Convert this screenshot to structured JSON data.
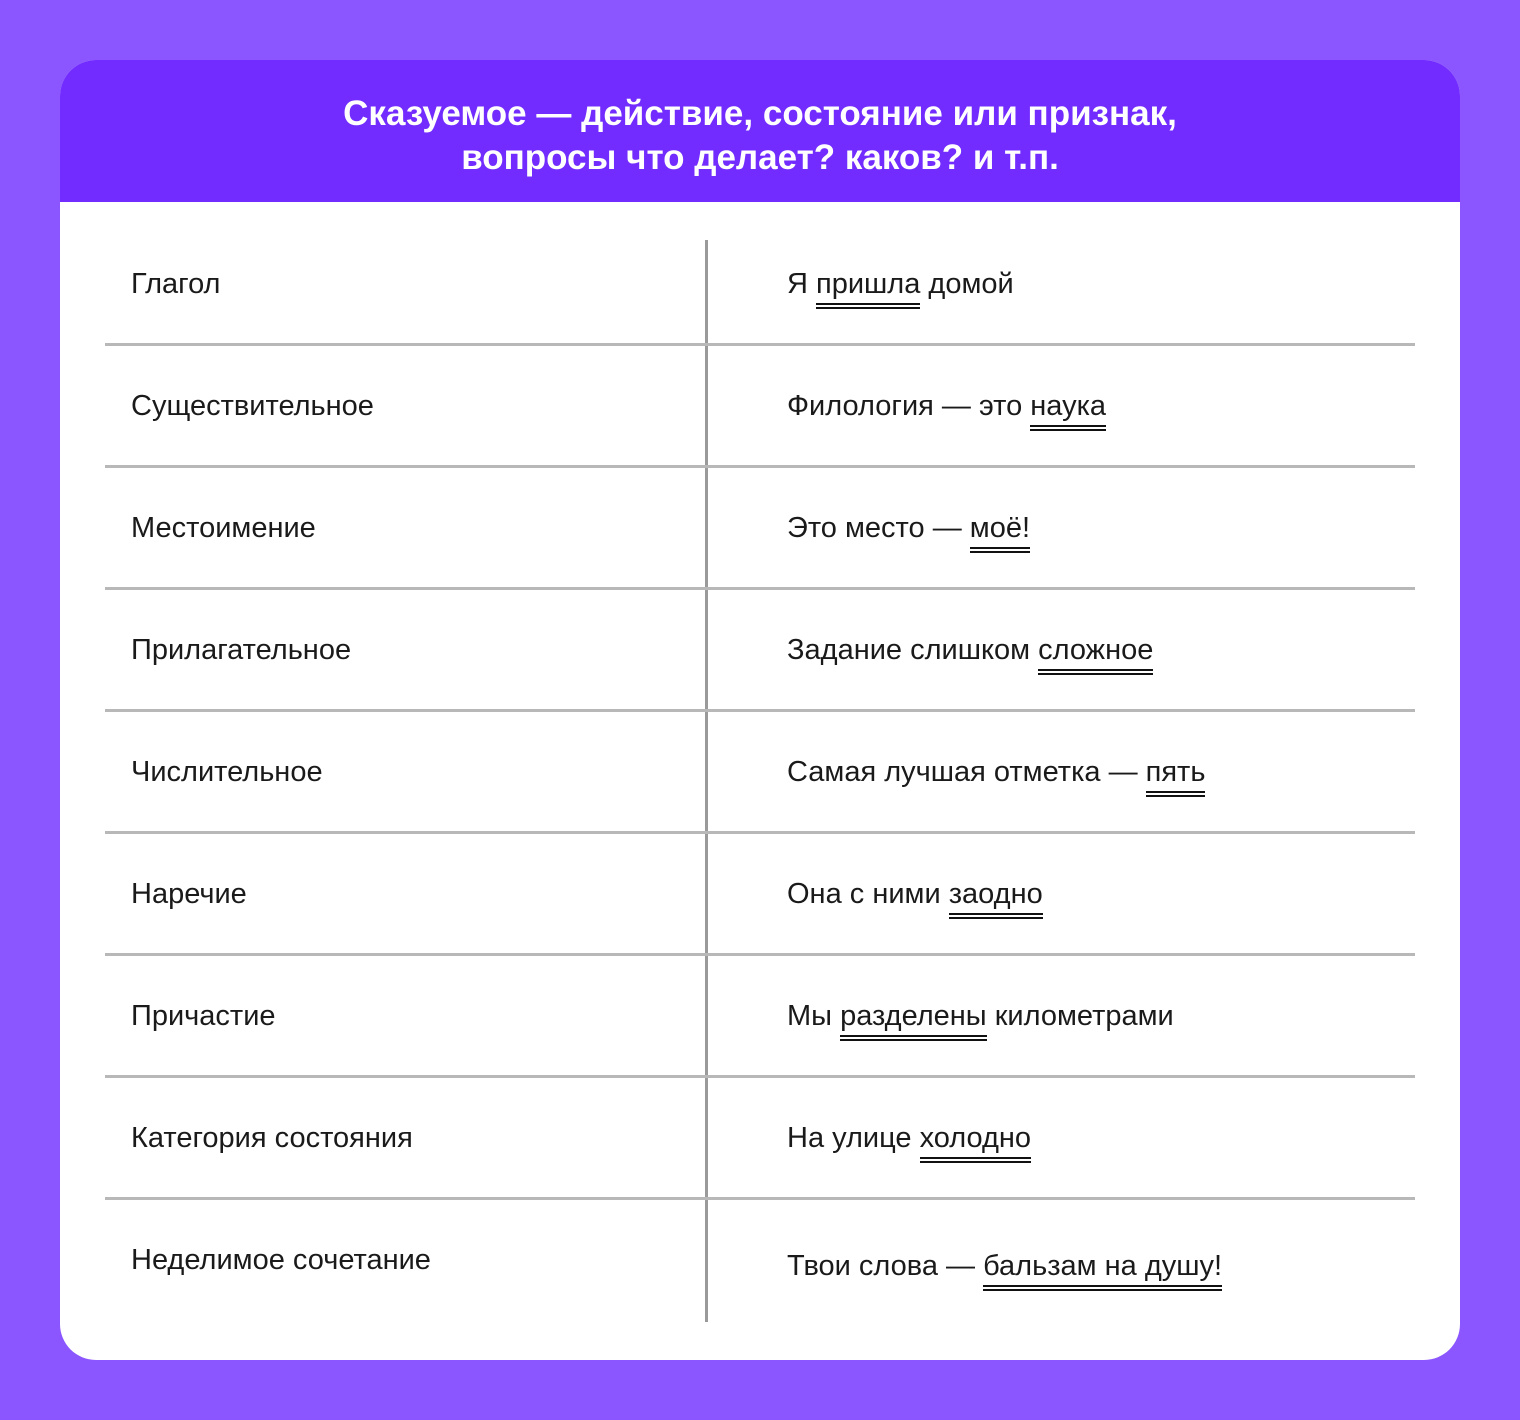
{
  "header": {
    "line1": "Сказуемое — действие, состояние или признак,",
    "line2": "вопросы что делает? каков? и т.п."
  },
  "colors": {
    "background": "#8b55ff",
    "header": "#722cff"
  },
  "rows": [
    {
      "type": "Глагол",
      "before": "Я ",
      "predicate": "пришла",
      "after": " домой"
    },
    {
      "type": "Существительное",
      "before": "Филология — это ",
      "predicate": "наука",
      "after": ""
    },
    {
      "type": "Местоимение",
      "before": "Это место — ",
      "predicate": "моё!",
      "after": ""
    },
    {
      "type": "Прилагательное",
      "before": "Задание слишком ",
      "predicate": "сложное",
      "after": ""
    },
    {
      "type": "Числительное",
      "before": "Самая лучшая отметка — ",
      "predicate": "пять",
      "after": ""
    },
    {
      "type": "Наречие",
      "before": "Она с ними ",
      "predicate": "заодно",
      "after": ""
    },
    {
      "type": "Причастие",
      "before": "Мы ",
      "predicate": "разделены",
      "after": " километрами"
    },
    {
      "type": "Категория состояния",
      "before": "На улице ",
      "predicate": "холодно",
      "after": ""
    },
    {
      "type": "Неделимое сочетание",
      "before": "Твои слова — ",
      "predicate": "бальзам на душу!",
      "after": ""
    }
  ]
}
